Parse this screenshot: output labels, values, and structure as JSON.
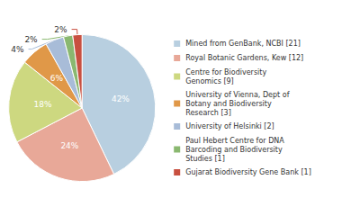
{
  "chart_data": {
    "type": "pie",
    "categories": [
      "Mined from GenBank, NCBI [21]",
      "Royal Botanic Gardens, Kew [12]",
      "Centre for Biodiversity\nGenomics [9]",
      "University of Vienna, Dept of\nBotany and Biodiversity\nResearch [3]",
      "University of Helsinki [2]",
      "Paul Hebert Centre for DNA\nBarcoding and Biodiversity\nStudies [1]",
      "Gujarat Biodiversity Gene Bank [1]"
    ],
    "values": [
      42,
      24,
      18,
      6,
      4,
      2,
      2
    ],
    "value_labels": [
      "42%",
      "24%",
      "18%",
      "6%",
      "4%",
      "2%",
      "2%"
    ],
    "colors": [
      "#b8cfe0",
      "#e8a898",
      "#cdd880",
      "#e09848",
      "#a8bcd8",
      "#8ab870",
      "#c85040"
    ],
    "data_labels": true,
    "legend": "right"
  }
}
